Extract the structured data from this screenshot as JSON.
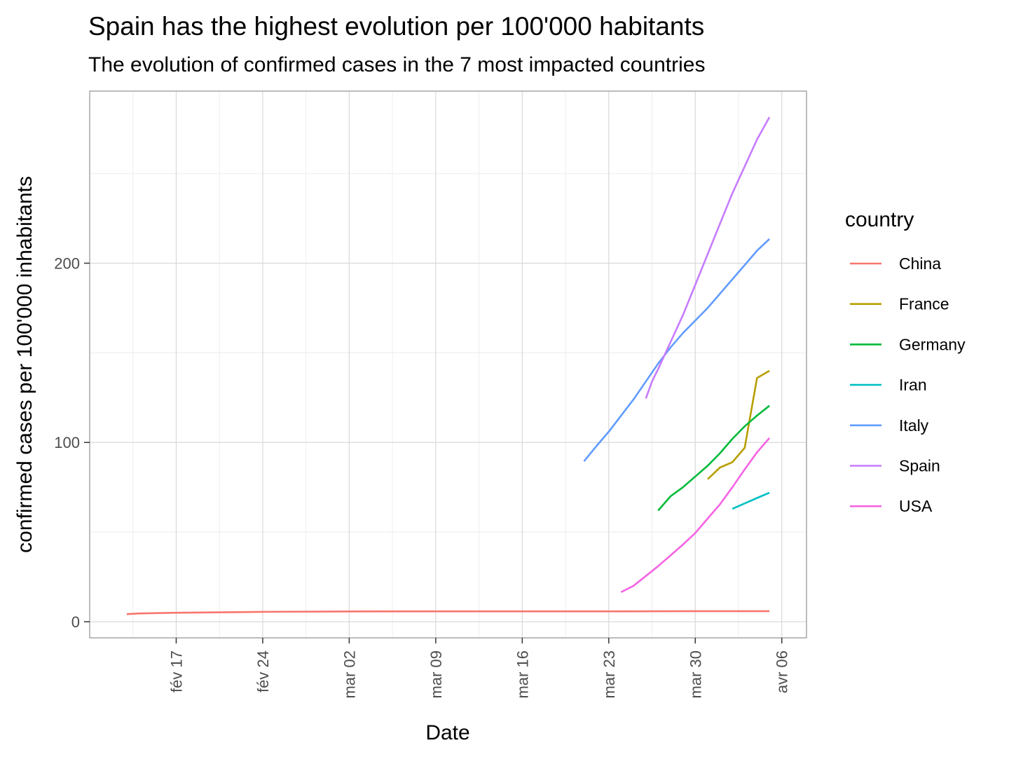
{
  "chart_data": {
    "type": "line",
    "title": "Spain has the highest evolution per 100'000 habitants",
    "subtitle": "The evolution of confirmed cases in the 7 most impacted countries",
    "xlabel": "Date",
    "ylabel": "confirmed cases per 100'000 inhabitants",
    "x_ticks": [
      {
        "date": "2020-02-17",
        "label": "fév 17"
      },
      {
        "date": "2020-02-24",
        "label": "fév 24"
      },
      {
        "date": "2020-03-02",
        "label": "mar 02"
      },
      {
        "date": "2020-03-09",
        "label": "mar 09"
      },
      {
        "date": "2020-03-16",
        "label": "mar 16"
      },
      {
        "date": "2020-03-23",
        "label": "mar 23"
      },
      {
        "date": "2020-03-30",
        "label": "mar 30"
      },
      {
        "date": "2020-04-06",
        "label": "avr 06"
      }
    ],
    "y_ticks": [
      0,
      100,
      200
    ],
    "xlim": [
      "2020-02-10",
      "2020-04-08"
    ],
    "ylim": [
      -9,
      296
    ],
    "grid": true,
    "legend": {
      "title": "country",
      "position": "right"
    },
    "series": [
      {
        "name": "China",
        "color": "#F8766D",
        "points": [
          [
            "2020-02-13",
            4.2
          ],
          [
            "2020-02-14",
            4.6
          ],
          [
            "2020-02-17",
            5.0
          ],
          [
            "2020-02-20",
            5.2
          ],
          [
            "2020-02-24",
            5.5
          ],
          [
            "2020-03-01",
            5.7
          ],
          [
            "2020-03-09",
            5.8
          ],
          [
            "2020-03-16",
            5.8
          ],
          [
            "2020-03-23",
            5.8
          ],
          [
            "2020-03-30",
            5.9
          ],
          [
            "2020-04-05",
            5.9
          ]
        ]
      },
      {
        "name": "France",
        "color": "#B79F00",
        "points": [
          [
            "2020-03-31",
            79.5
          ],
          [
            "2020-04-01",
            86
          ],
          [
            "2020-04-02",
            89
          ],
          [
            "2020-04-03",
            97
          ],
          [
            "2020-04-04",
            136
          ],
          [
            "2020-04-05",
            140
          ]
        ]
      },
      {
        "name": "Germany",
        "color": "#00BA38",
        "points": [
          [
            "2020-03-27",
            62
          ],
          [
            "2020-03-28",
            70
          ],
          [
            "2020-03-29",
            75
          ],
          [
            "2020-03-30",
            81
          ],
          [
            "2020-03-31",
            87
          ],
          [
            "2020-04-01",
            94
          ],
          [
            "2020-04-02",
            102
          ],
          [
            "2020-04-03",
            109
          ],
          [
            "2020-04-04",
            115
          ],
          [
            "2020-04-05",
            120.5
          ]
        ]
      },
      {
        "name": "Iran",
        "color": "#00BFC4",
        "points": [
          [
            "2020-04-02",
            63
          ],
          [
            "2020-04-03",
            66
          ],
          [
            "2020-04-04",
            69
          ],
          [
            "2020-04-05",
            72
          ]
        ]
      },
      {
        "name": "Italy",
        "color": "#619CFF",
        "points": [
          [
            "2020-03-21",
            89.5
          ],
          [
            "2020-03-22",
            98
          ],
          [
            "2020-03-23",
            106
          ],
          [
            "2020-03-24",
            115
          ],
          [
            "2020-03-25",
            124
          ],
          [
            "2020-03-26",
            134
          ],
          [
            "2020-03-27",
            144
          ],
          [
            "2020-03-28",
            153
          ],
          [
            "2020-03-29",
            161
          ],
          [
            "2020-03-30",
            168
          ],
          [
            "2020-03-31",
            175
          ],
          [
            "2020-04-01",
            183
          ],
          [
            "2020-04-02",
            191
          ],
          [
            "2020-04-03",
            199
          ],
          [
            "2020-04-04",
            207
          ],
          [
            "2020-04-05",
            213.5
          ]
        ]
      },
      {
        "name": "Spain",
        "color": "#C77CFF",
        "points": [
          [
            "2020-03-26",
            124.5
          ],
          [
            "2020-03-26.5",
            134
          ],
          [
            "2020-03-27",
            141
          ],
          [
            "2020-03-28",
            156
          ],
          [
            "2020-03-29",
            171
          ],
          [
            "2020-03-30",
            188
          ],
          [
            "2020-03-31",
            205
          ],
          [
            "2020-04-01",
            222
          ],
          [
            "2020-04-02",
            239
          ],
          [
            "2020-04-03",
            254
          ],
          [
            "2020-04-04",
            269
          ],
          [
            "2020-04-05",
            281.5
          ]
        ]
      },
      {
        "name": "USA",
        "color": "#F564E3",
        "points": [
          [
            "2020-03-24",
            16.5
          ],
          [
            "2020-03-25",
            20
          ],
          [
            "2020-03-26",
            25.5
          ],
          [
            "2020-03-27",
            31
          ],
          [
            "2020-03-28",
            37
          ],
          [
            "2020-03-29",
            43
          ],
          [
            "2020-03-30",
            49.5
          ],
          [
            "2020-03-31",
            57.5
          ],
          [
            "2020-04-01",
            65.5
          ],
          [
            "2020-04-02",
            75
          ],
          [
            "2020-04-03",
            85
          ],
          [
            "2020-04-04",
            94.5
          ],
          [
            "2020-04-05",
            102.5
          ]
        ]
      }
    ]
  }
}
